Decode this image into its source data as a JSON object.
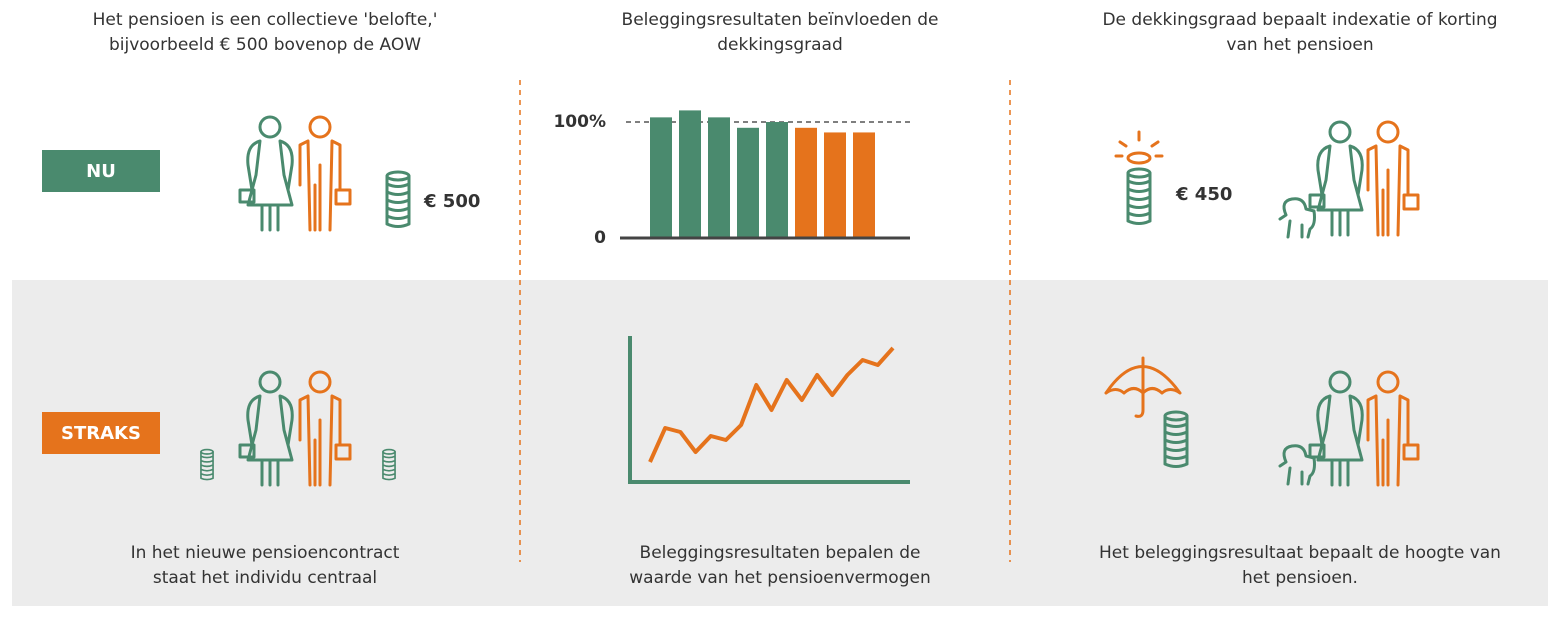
{
  "headings": [
    [
      "Het pensioen is een collectieve 'belofte,'",
      "bijvoorbeeld € 500 bovenop de AOW"
    ],
    [
      "Beleggingsresultaten beïnvloeden de",
      "dekkingsgraad"
    ],
    [
      "De dekkingsgraad bepaalt indexatie of korting",
      "van het pensioen"
    ]
  ],
  "labels": {
    "now": "NU",
    "later": "STRAKS"
  },
  "amounts": [
    "€ 500",
    "€ 450"
  ],
  "captions": [
    [
      "In het nieuwe pensioencontract",
      "staat het individu centraal"
    ],
    [
      "Beleggingsresultaten bepalen de",
      "waarde van het pensioenvermogen"
    ],
    [
      "Het beleggingsresultaat bepaalt de hoogte van",
      "het pensioen."
    ]
  ],
  "chart_data": [
    {
      "type": "bar",
      "values": [
        104,
        110,
        104,
        95,
        100,
        95,
        91,
        91
      ],
      "colors": [
        "#4a8a6e",
        "#4a8a6e",
        "#4a8a6e",
        "#4a8a6e",
        "#4a8a6e",
        "#e5731c",
        "#e5731c",
        "#e5731c"
      ],
      "ylim": [
        0,
        110
      ],
      "yticks": [
        0,
        {
          "value": 100,
          "label": "100%"
        }
      ],
      "grid": true
    },
    {
      "type": "line",
      "values": [
        18,
        52,
        48,
        28,
        44,
        40,
        55,
        95,
        70,
        100,
        80,
        105,
        85,
        105,
        120,
        115,
        132
      ],
      "color": "#e5731c",
      "ylim": [
        0,
        140
      ]
    }
  ]
}
